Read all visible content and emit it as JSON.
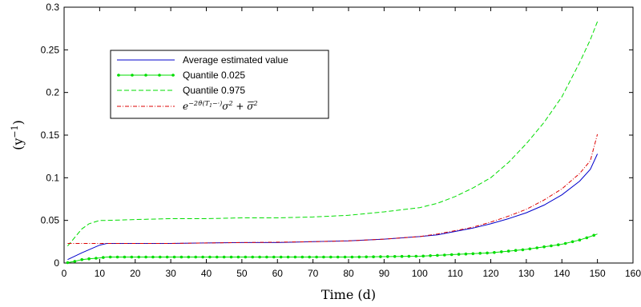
{
  "chart_data": {
    "type": "line",
    "title": "",
    "xlabel": "Time (d)",
    "ylabel": "(y−1)",
    "xlim": [
      0,
      160
    ],
    "ylim": [
      0,
      0.3
    ],
    "x_ticks": [
      0,
      10,
      20,
      30,
      40,
      50,
      60,
      70,
      80,
      90,
      100,
      110,
      120,
      130,
      140,
      150,
      160
    ],
    "y_ticks": [
      0,
      0.05,
      0.1,
      0.15,
      0.2,
      0.25,
      0.3
    ],
    "x_tick_labels": [
      "0",
      "10",
      "20",
      "30",
      "40",
      "50",
      "60",
      "70",
      "80",
      "90",
      "100",
      "110",
      "120",
      "130",
      "140",
      "150",
      "160"
    ],
    "y_tick_labels": [
      "0",
      "0.05",
      "0.1",
      "0.15",
      "0.2",
      "0.25",
      "0.3"
    ],
    "grid": false,
    "legend_position": "top-left",
    "series": [
      {
        "name": "Average estimated value",
        "color": "#0000cc",
        "style": "solid",
        "x": [
          1,
          5,
          10,
          12,
          20,
          30,
          40,
          50,
          60,
          70,
          80,
          90,
          100,
          105,
          110,
          115,
          120,
          125,
          130,
          135,
          140,
          145,
          148,
          150
        ],
        "y": [
          0.004,
          0.012,
          0.021,
          0.023,
          0.023,
          0.023,
          0.0235,
          0.024,
          0.024,
          0.025,
          0.026,
          0.028,
          0.031,
          0.033,
          0.037,
          0.041,
          0.046,
          0.052,
          0.059,
          0.068,
          0.08,
          0.096,
          0.11,
          0.128
        ]
      },
      {
        "name": "Quantile 0.025",
        "color": "#00dd00",
        "style": "solid-markers",
        "x": [
          1,
          3,
          5,
          7,
          10,
          12,
          20,
          30,
          40,
          50,
          60,
          70,
          80,
          90,
          100,
          105,
          110,
          115,
          120,
          125,
          130,
          135,
          140,
          145,
          148,
          150
        ],
        "y": [
          0.0005,
          0.002,
          0.004,
          0.005,
          0.006,
          0.007,
          0.007,
          0.007,
          0.007,
          0.007,
          0.007,
          0.007,
          0.007,
          0.0075,
          0.008,
          0.009,
          0.01,
          0.011,
          0.012,
          0.014,
          0.016,
          0.019,
          0.022,
          0.027,
          0.031,
          0.034
        ]
      },
      {
        "name": "Quantile 0.975",
        "color": "#00dd00",
        "style": "dashed",
        "x": [
          1,
          3,
          5,
          7,
          10,
          12,
          20,
          30,
          40,
          50,
          60,
          70,
          80,
          90,
          100,
          105,
          110,
          115,
          120,
          125,
          130,
          135,
          140,
          145,
          148,
          150
        ],
        "y": [
          0.02,
          0.03,
          0.04,
          0.046,
          0.05,
          0.05,
          0.051,
          0.052,
          0.052,
          0.053,
          0.053,
          0.054,
          0.056,
          0.06,
          0.065,
          0.07,
          0.078,
          0.088,
          0.1,
          0.118,
          0.14,
          0.165,
          0.195,
          0.235,
          0.262,
          0.283
        ]
      },
      {
        "name": "e^{-2ϑ(T1−·)}σ² + σ̄²",
        "color": "#dd0000",
        "style": "dashdot",
        "x": [
          1,
          10,
          20,
          30,
          40,
          50,
          60,
          70,
          80,
          90,
          100,
          105,
          110,
          115,
          120,
          125,
          130,
          135,
          140,
          145,
          148,
          150
        ],
        "y": [
          0.023,
          0.023,
          0.023,
          0.023,
          0.0235,
          0.024,
          0.0245,
          0.025,
          0.026,
          0.028,
          0.031,
          0.034,
          0.038,
          0.042,
          0.048,
          0.055,
          0.063,
          0.074,
          0.087,
          0.105,
          0.12,
          0.151
        ]
      }
    ]
  },
  "legend": {
    "entries": [
      {
        "label": "Average estimated value"
      },
      {
        "label": "Quantile 0.025"
      },
      {
        "label": "Quantile 0.975"
      },
      {
        "math_base": "e",
        "math_exp": "−2ϑ(T",
        "math_exp_sub": "1",
        "math_exp_tail": "−·)",
        "math_rest_1": "σ",
        "math_sq": "2",
        "math_plus": " + ",
        "math_rest_2": "σ",
        "math_sq_2": "2"
      }
    ]
  },
  "axes": {
    "xlabel": "Time (d)",
    "ylabel_base": "(y",
    "ylabel_exp": "−1",
    "ylabel_close": ")"
  }
}
